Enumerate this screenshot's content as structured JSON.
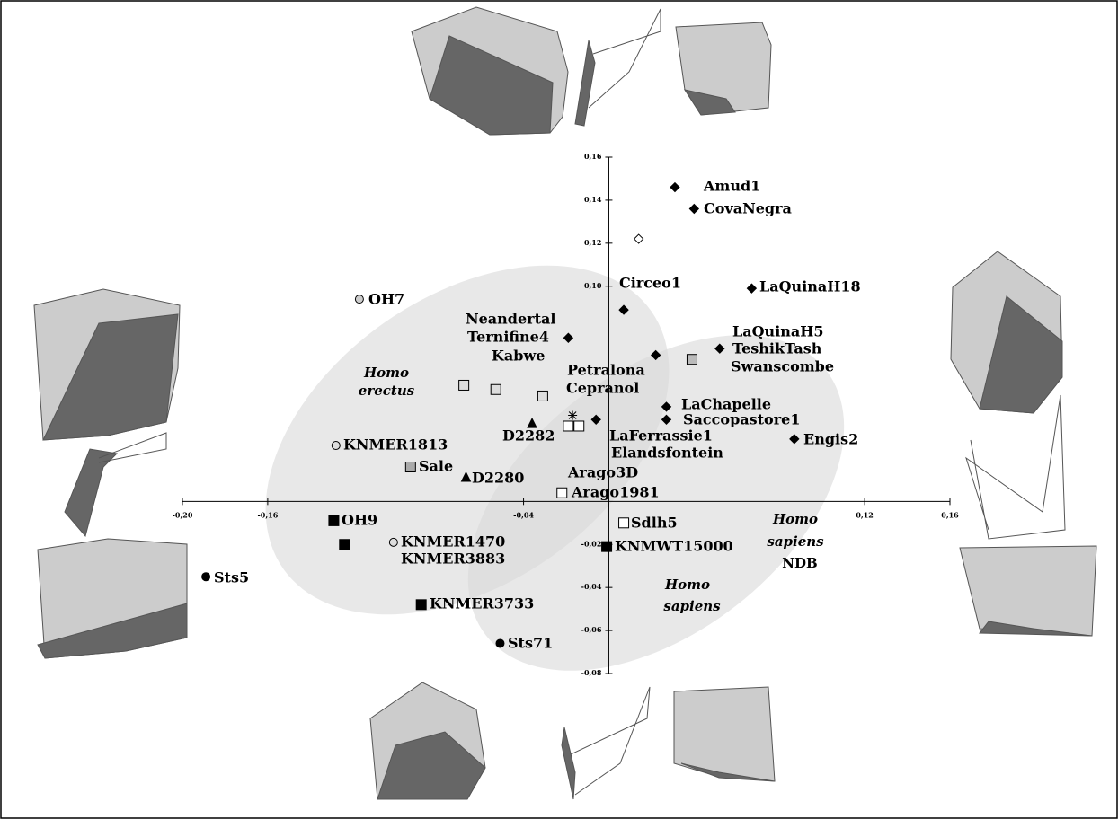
{
  "chart_data": {
    "type": "scatter",
    "xlim": [
      -0.2,
      0.16
    ],
    "ylim": [
      -0.08,
      0.16
    ],
    "xticks": [
      {
        "value": -0.2,
        "label": "-0,20"
      },
      {
        "value": -0.16,
        "label": "-0,16"
      },
      {
        "value": -0.04,
        "label": "-0,04"
      },
      {
        "value": 0.12,
        "label": "0,12"
      },
      {
        "value": 0.16,
        "label": "0,16"
      }
    ],
    "yticks": [
      {
        "value": 0.16,
        "label": "0,16"
      },
      {
        "value": 0.14,
        "label": "0,14"
      },
      {
        "value": 0.12,
        "label": "0,12"
      },
      {
        "value": 0.1,
        "label": "0,10"
      },
      {
        "value": -0.02,
        "label": "-0,02"
      },
      {
        "value": -0.04,
        "label": "-0,04"
      },
      {
        "value": -0.06,
        "label": "-0,06"
      },
      {
        "value": -0.08,
        "label": "-0,08"
      }
    ],
    "points": [
      {
        "label": "Amud1",
        "x": 0.031,
        "y": 0.146,
        "marker": "diamond",
        "color": "#000"
      },
      {
        "label": "CovaNegra",
        "x": 0.04,
        "y": 0.136,
        "marker": "diamond",
        "color": "#000"
      },
      {
        "label": null,
        "x": 0.014,
        "y": 0.122,
        "marker": "diamond",
        "color": "#fff"
      },
      {
        "label": "LaQuinaH18",
        "x": 0.067,
        "y": 0.099,
        "marker": "diamond",
        "color": "#000"
      },
      {
        "label": "Circeo1",
        "x": 0.007,
        "y": 0.089,
        "marker": "diamond",
        "color": "#000"
      },
      {
        "label": "Neandertal",
        "x": -0.019,
        "y": 0.076,
        "marker": "diamond",
        "color": "#000"
      },
      {
        "label": "LaQuinaH5",
        "x": 0.022,
        "y": 0.068,
        "marker": "diamond",
        "color": "#000"
      },
      {
        "label": "TeshikTash",
        "x": 0.052,
        "y": 0.071,
        "marker": "diamond",
        "color": "#000"
      },
      {
        "label": "Swanscombe",
        "x": 0.039,
        "y": 0.066,
        "marker": "square",
        "color": "#bbb"
      },
      {
        "label": "Ternifine4",
        "x": -0.068,
        "y": 0.054,
        "marker": "square",
        "color": "#ddd"
      },
      {
        "label": "Kabwe",
        "x": -0.053,
        "y": 0.052,
        "marker": "square",
        "color": "#ddd"
      },
      {
        "label": "Petralona",
        "x": -0.031,
        "y": 0.049,
        "marker": "square",
        "color": "#ddd"
      },
      {
        "label": "Cepranol",
        "x": -0.017,
        "y": 0.04,
        "marker": "star",
        "color": "#000"
      },
      {
        "label": "LaChapelle",
        "x": 0.027,
        "y": 0.044,
        "marker": "diamond",
        "color": "#000"
      },
      {
        "label": "Saccopastore1",
        "x": 0.027,
        "y": 0.038,
        "marker": "diamond",
        "color": "#000"
      },
      {
        "label": "Engis2",
        "x": 0.087,
        "y": 0.029,
        "marker": "diamond",
        "color": "#000"
      },
      {
        "label": "LaFerrassie1",
        "x": -0.006,
        "y": 0.038,
        "marker": "diamond",
        "color": "#000"
      },
      {
        "label": "Elandsfontein",
        "x": -0.014,
        "y": 0.035,
        "marker": "square",
        "color": "#fff"
      },
      {
        "label": "Arago3D",
        "x": -0.019,
        "y": 0.035,
        "marker": "square",
        "color": "#fff"
      },
      {
        "label": "D2282",
        "x": -0.036,
        "y": 0.036,
        "marker": "triangle",
        "color": "#000"
      },
      {
        "label": "OH7",
        "x": -0.117,
        "y": 0.094,
        "marker": "circle",
        "color": "#ccc"
      },
      {
        "label": "KNMER1813",
        "x": -0.128,
        "y": 0.026,
        "marker": "circle",
        "color": "#ddd"
      },
      {
        "label": "Sale",
        "x": -0.093,
        "y": 0.016,
        "marker": "square",
        "color": "#aaa"
      },
      {
        "label": "D2280",
        "x": -0.067,
        "y": 0.011,
        "marker": "triangle",
        "color": "#000"
      },
      {
        "label": "Arago1981",
        "x": -0.022,
        "y": 0.004,
        "marker": "square",
        "color": "#fff"
      },
      {
        "label": "OH9",
        "x": -0.129,
        "y": -0.009,
        "marker": "square",
        "color": "#000"
      },
      {
        "label": "Sdlh5",
        "x": 0.007,
        "y": -0.01,
        "marker": "square",
        "color": "#fff"
      },
      {
        "label": "KNMER1470",
        "x": -0.101,
        "y": -0.019,
        "marker": "circle",
        "color": "#ddd"
      },
      {
        "label": "KNMER3883",
        "x": -0.124,
        "y": -0.02,
        "marker": "square",
        "color": "#000"
      },
      {
        "label": "KNMWT15000",
        "x": -0.001,
        "y": -0.021,
        "marker": "square",
        "color": "#000"
      },
      {
        "label": "Sts5",
        "x": -0.189,
        "y": -0.035,
        "marker": "circle",
        "color": "#000"
      },
      {
        "label": "KNMER3733",
        "x": -0.088,
        "y": -0.048,
        "marker": "square",
        "color": "#000"
      },
      {
        "label": "Sts71",
        "x": -0.051,
        "y": -0.066,
        "marker": "circle",
        "color": "#000"
      }
    ],
    "annotations": [
      {
        "lines": [
          "Homo",
          "erectus"
        ]
      },
      {
        "lines": [
          "Homo",
          "sapiens",
          "NDB"
        ]
      },
      {
        "lines": [
          "Homo",
          "sapiens"
        ]
      }
    ]
  }
}
